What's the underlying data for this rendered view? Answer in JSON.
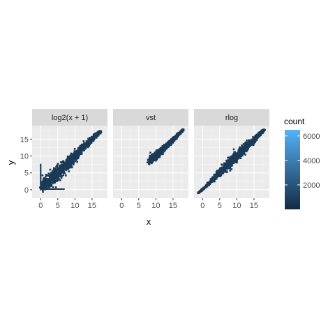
{
  "chart_data": {
    "type": "heatmap",
    "description_type": "faceted 2D hexbin density",
    "xlabel": "x",
    "ylabel": "y",
    "xlim": [
      -2.5,
      19.5
    ],
    "ylim": [
      -2.5,
      19
    ],
    "xticks": [
      0,
      5,
      10,
      15
    ],
    "yticks": [
      0,
      5,
      10,
      15
    ],
    "grid": true,
    "legend": {
      "title": "count",
      "position": "right",
      "ticks": [
        2000,
        4000,
        6000
      ],
      "range": [
        0,
        6500
      ],
      "color_low": "#132B43",
      "color_high": "#56B1F7"
    },
    "panels": [
      {
        "name": "log2(x + 1)",
        "points": [
          [
            0.5,
            0.6
          ],
          [
            2,
            2
          ],
          [
            4,
            4
          ],
          [
            6,
            6.2
          ],
          [
            8,
            8
          ],
          [
            10,
            10
          ],
          [
            12,
            12.2
          ],
          [
            14,
            14
          ],
          [
            16,
            16
          ],
          [
            17.5,
            17.3
          ]
        ],
        "spread": [
          1.0,
          1.3,
          1.6,
          1.4,
          1.2,
          1.0,
          0.8,
          0.6,
          0.4,
          0.25
        ],
        "extras": {
          "vertical_streak_x": 0,
          "vertical_streak_y": [
            0,
            7.5
          ],
          "horizontal_streak_y": 0.2,
          "horizontal_streak_x": [
            0,
            7
          ]
        }
      },
      {
        "name": "vst",
        "points": [
          [
            8.2,
            8.5
          ],
          [
            9.5,
            9.8
          ],
          [
            11,
            11
          ],
          [
            12.5,
            12.4
          ],
          [
            14,
            13.8
          ],
          [
            15.5,
            15.3
          ],
          [
            17,
            16.8
          ],
          [
            18,
            17.8
          ]
        ],
        "spread": [
          0.7,
          0.8,
          0.7,
          0.6,
          0.5,
          0.35,
          0.25,
          0.15
        ],
        "extras": {}
      },
      {
        "name": "rlog",
        "points": [
          [
            -1.3,
            -1.0
          ],
          [
            1,
            1
          ],
          [
            3,
            3
          ],
          [
            5,
            5
          ],
          [
            7,
            7
          ],
          [
            9,
            9
          ],
          [
            11,
            11
          ],
          [
            13,
            13
          ],
          [
            15,
            14.8
          ],
          [
            17,
            16.8
          ],
          [
            18,
            17.8
          ]
        ],
        "spread": [
          0.1,
          0.2,
          0.4,
          0.7,
          1.0,
          1.1,
          1.0,
          0.8,
          0.6,
          0.35,
          0.15
        ],
        "extras": {}
      }
    ]
  }
}
